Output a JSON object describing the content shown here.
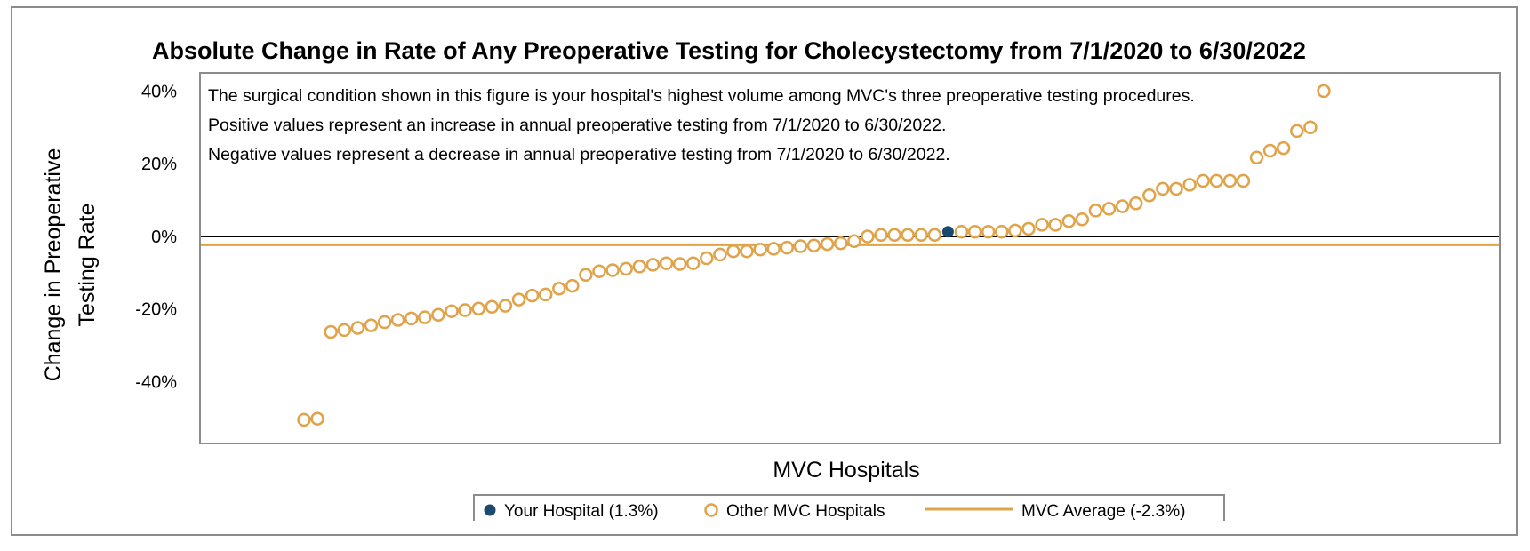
{
  "chart_data": {
    "type": "scatter",
    "title": "Absolute Change in Rate of Any Preoperative Testing for Cholecystectomy from 7/1/2020 to 6/30/2022",
    "notes": [
      "The surgical condition shown in this figure is your hospital's highest volume among MVC's three preoperative testing procedures.",
      "Positive values represent an increase in annual preoperative testing from 7/1/2020 to 6/30/2022.",
      "Negative values represent a decrease in annual preoperative testing from 7/1/2020 to 6/30/2022."
    ],
    "xlabel": "MVC Hospitals",
    "ylabel_lines": [
      "Change in Preoperative",
      "Testing Rate"
    ],
    "y_ticks": [
      40,
      20,
      0,
      -20,
      -40
    ],
    "y_tick_labels": [
      "40%",
      "20%",
      "0%",
      "-20%",
      "-40%"
    ],
    "ylim": [
      -57,
      45
    ],
    "grid": false,
    "legend_position": "bottom",
    "colors": {
      "your_hospital": "#1b4a6e",
      "other": "#e0a34a",
      "average": "#e0a34a",
      "zero_line": "#000000",
      "frame": "#8c8c8c"
    },
    "average": {
      "value": -2.3
    },
    "your_hospital": {
      "rank": 48,
      "value": 1.3
    },
    "other_hospitals_values": [
      -50.5,
      -50.2,
      -26.3,
      -25.8,
      -25.2,
      -24.5,
      -23.6,
      -23.0,
      -22.6,
      -22.3,
      -21.6,
      -20.6,
      -20.3,
      -19.9,
      -19.4,
      -19.1,
      -17.4,
      -16.3,
      -16.0,
      -14.4,
      -13.6,
      -10.6,
      -9.6,
      -9.3,
      -8.9,
      -8.3,
      -7.8,
      -7.4,
      -7.6,
      -7.4,
      -6.0,
      -5.0,
      -4.1,
      -4.1,
      -3.6,
      -3.4,
      -3.1,
      -2.7,
      -2.5,
      -2.1,
      -1.9,
      -1.3,
      0.0,
      0.4,
      0.4,
      0.4,
      0.4,
      0.4,
      1.3,
      1.3,
      1.3,
      1.3,
      1.6,
      2.1,
      3.2,
      3.2,
      4.2,
      4.7,
      7.1,
      7.6,
      8.3,
      9.1,
      11.3,
      13.1,
      13.1,
      14.2,
      15.3,
      15.3,
      15.3,
      15.3,
      21.7,
      23.6,
      24.3,
      29.0,
      30.0,
      40.0
    ],
    "legend": [
      {
        "key": "your_hospital",
        "label": "Your Hospital (1.3%)"
      },
      {
        "key": "other",
        "label": "Other MVC Hospitals"
      },
      {
        "key": "average",
        "label": "MVC Average (-2.3%)"
      }
    ]
  }
}
